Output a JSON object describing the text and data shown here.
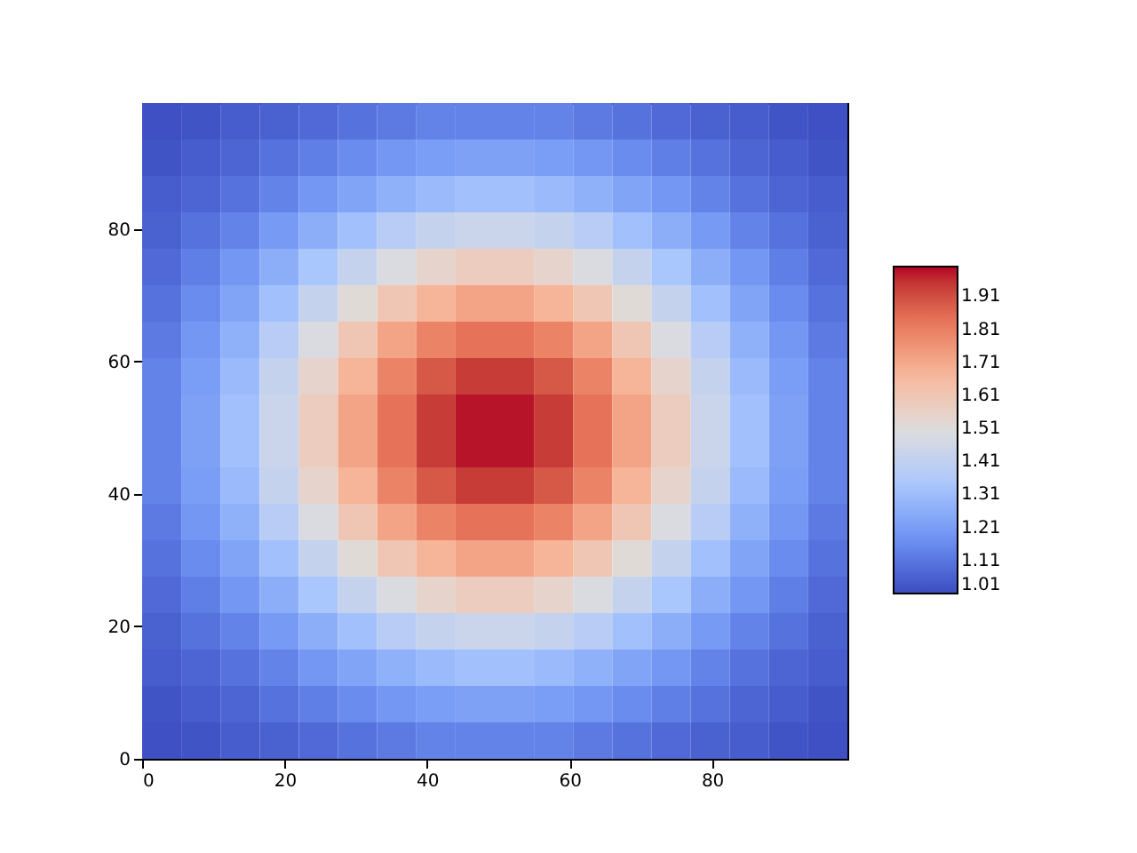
{
  "chart_data": {
    "type": "heatmap",
    "x": [
      2.75,
      8.25,
      13.75,
      19.25,
      24.75,
      30.25,
      35.75,
      41.25,
      46.75,
      52.25,
      57.75,
      63.25,
      68.75,
      74.25,
      79.75,
      85.25,
      90.75,
      96.25
    ],
    "y": [
      96.25,
      90.75,
      85.25,
      79.75,
      74.25,
      68.75,
      63.25,
      57.75,
      52.25,
      46.75,
      41.25,
      35.75,
      30.25,
      24.75,
      19.25,
      13.75,
      8.25,
      2.75
    ],
    "cells": [
      [
        1.02,
        1.03,
        1.05,
        1.06,
        1.08,
        1.1,
        1.12,
        1.14,
        1.14,
        1.14,
        1.14,
        1.12,
        1.1,
        1.08,
        1.06,
        1.05,
        1.03,
        1.02
      ],
      [
        1.03,
        1.05,
        1.07,
        1.1,
        1.13,
        1.16,
        1.19,
        1.21,
        1.22,
        1.22,
        1.21,
        1.19,
        1.16,
        1.13,
        1.1,
        1.07,
        1.05,
        1.03
      ],
      [
        1.05,
        1.07,
        1.1,
        1.14,
        1.19,
        1.23,
        1.27,
        1.3,
        1.32,
        1.32,
        1.3,
        1.27,
        1.23,
        1.19,
        1.14,
        1.1,
        1.07,
        1.05
      ],
      [
        1.06,
        1.1,
        1.14,
        1.2,
        1.26,
        1.32,
        1.38,
        1.42,
        1.44,
        1.44,
        1.42,
        1.38,
        1.32,
        1.26,
        1.2,
        1.14,
        1.1,
        1.06
      ],
      [
        1.08,
        1.13,
        1.19,
        1.26,
        1.34,
        1.42,
        1.49,
        1.55,
        1.58,
        1.58,
        1.55,
        1.49,
        1.42,
        1.34,
        1.26,
        1.19,
        1.13,
        1.08
      ],
      [
        1.1,
        1.16,
        1.23,
        1.32,
        1.42,
        1.52,
        1.61,
        1.68,
        1.72,
        1.72,
        1.68,
        1.61,
        1.52,
        1.42,
        1.32,
        1.23,
        1.16,
        1.1
      ],
      [
        1.12,
        1.19,
        1.27,
        1.38,
        1.49,
        1.61,
        1.72,
        1.8,
        1.84,
        1.84,
        1.8,
        1.72,
        1.61,
        1.49,
        1.38,
        1.27,
        1.19,
        1.12
      ],
      [
        1.14,
        1.21,
        1.3,
        1.42,
        1.55,
        1.68,
        1.8,
        1.89,
        1.94,
        1.94,
        1.89,
        1.8,
        1.68,
        1.55,
        1.42,
        1.3,
        1.21,
        1.14
      ],
      [
        1.14,
        1.22,
        1.32,
        1.44,
        1.58,
        1.72,
        1.84,
        1.94,
        1.99,
        1.99,
        1.94,
        1.84,
        1.72,
        1.58,
        1.44,
        1.32,
        1.22,
        1.14
      ],
      [
        1.14,
        1.22,
        1.32,
        1.44,
        1.58,
        1.72,
        1.84,
        1.94,
        1.99,
        1.99,
        1.94,
        1.84,
        1.72,
        1.58,
        1.44,
        1.32,
        1.22,
        1.14
      ],
      [
        1.14,
        1.21,
        1.3,
        1.42,
        1.55,
        1.68,
        1.8,
        1.89,
        1.94,
        1.94,
        1.89,
        1.8,
        1.68,
        1.55,
        1.42,
        1.3,
        1.21,
        1.14
      ],
      [
        1.12,
        1.19,
        1.27,
        1.38,
        1.49,
        1.61,
        1.72,
        1.8,
        1.84,
        1.84,
        1.8,
        1.72,
        1.61,
        1.49,
        1.38,
        1.27,
        1.19,
        1.12
      ],
      [
        1.1,
        1.16,
        1.23,
        1.32,
        1.42,
        1.52,
        1.61,
        1.68,
        1.72,
        1.72,
        1.68,
        1.61,
        1.52,
        1.42,
        1.32,
        1.23,
        1.16,
        1.1
      ],
      [
        1.08,
        1.13,
        1.19,
        1.26,
        1.34,
        1.42,
        1.49,
        1.55,
        1.58,
        1.58,
        1.55,
        1.49,
        1.42,
        1.34,
        1.26,
        1.19,
        1.13,
        1.08
      ],
      [
        1.06,
        1.1,
        1.14,
        1.2,
        1.26,
        1.32,
        1.38,
        1.42,
        1.44,
        1.44,
        1.42,
        1.38,
        1.32,
        1.26,
        1.2,
        1.14,
        1.1,
        1.06
      ],
      [
        1.05,
        1.07,
        1.1,
        1.14,
        1.19,
        1.23,
        1.27,
        1.3,
        1.32,
        1.32,
        1.3,
        1.27,
        1.23,
        1.19,
        1.14,
        1.1,
        1.07,
        1.05
      ],
      [
        1.03,
        1.05,
        1.07,
        1.1,
        1.13,
        1.16,
        1.19,
        1.21,
        1.22,
        1.22,
        1.21,
        1.19,
        1.16,
        1.13,
        1.1,
        1.07,
        1.05,
        1.03
      ],
      [
        1.02,
        1.03,
        1.05,
        1.06,
        1.08,
        1.1,
        1.12,
        1.14,
        1.14,
        1.14,
        1.14,
        1.12,
        1.1,
        1.08,
        1.06,
        1.05,
        1.03,
        1.02
      ]
    ],
    "xlim": [
      0,
      99
    ],
    "ylim": [
      0,
      99
    ],
    "xticks": [
      0,
      20,
      40,
      60,
      80
    ],
    "yticks": [
      0,
      20,
      40,
      60,
      80
    ],
    "clim": [
      1.01,
      2.0
    ],
    "cticks": [
      1.01,
      1.11,
      1.21,
      1.31,
      1.41,
      1.51,
      1.61,
      1.71,
      1.81,
      1.91
    ]
  }
}
